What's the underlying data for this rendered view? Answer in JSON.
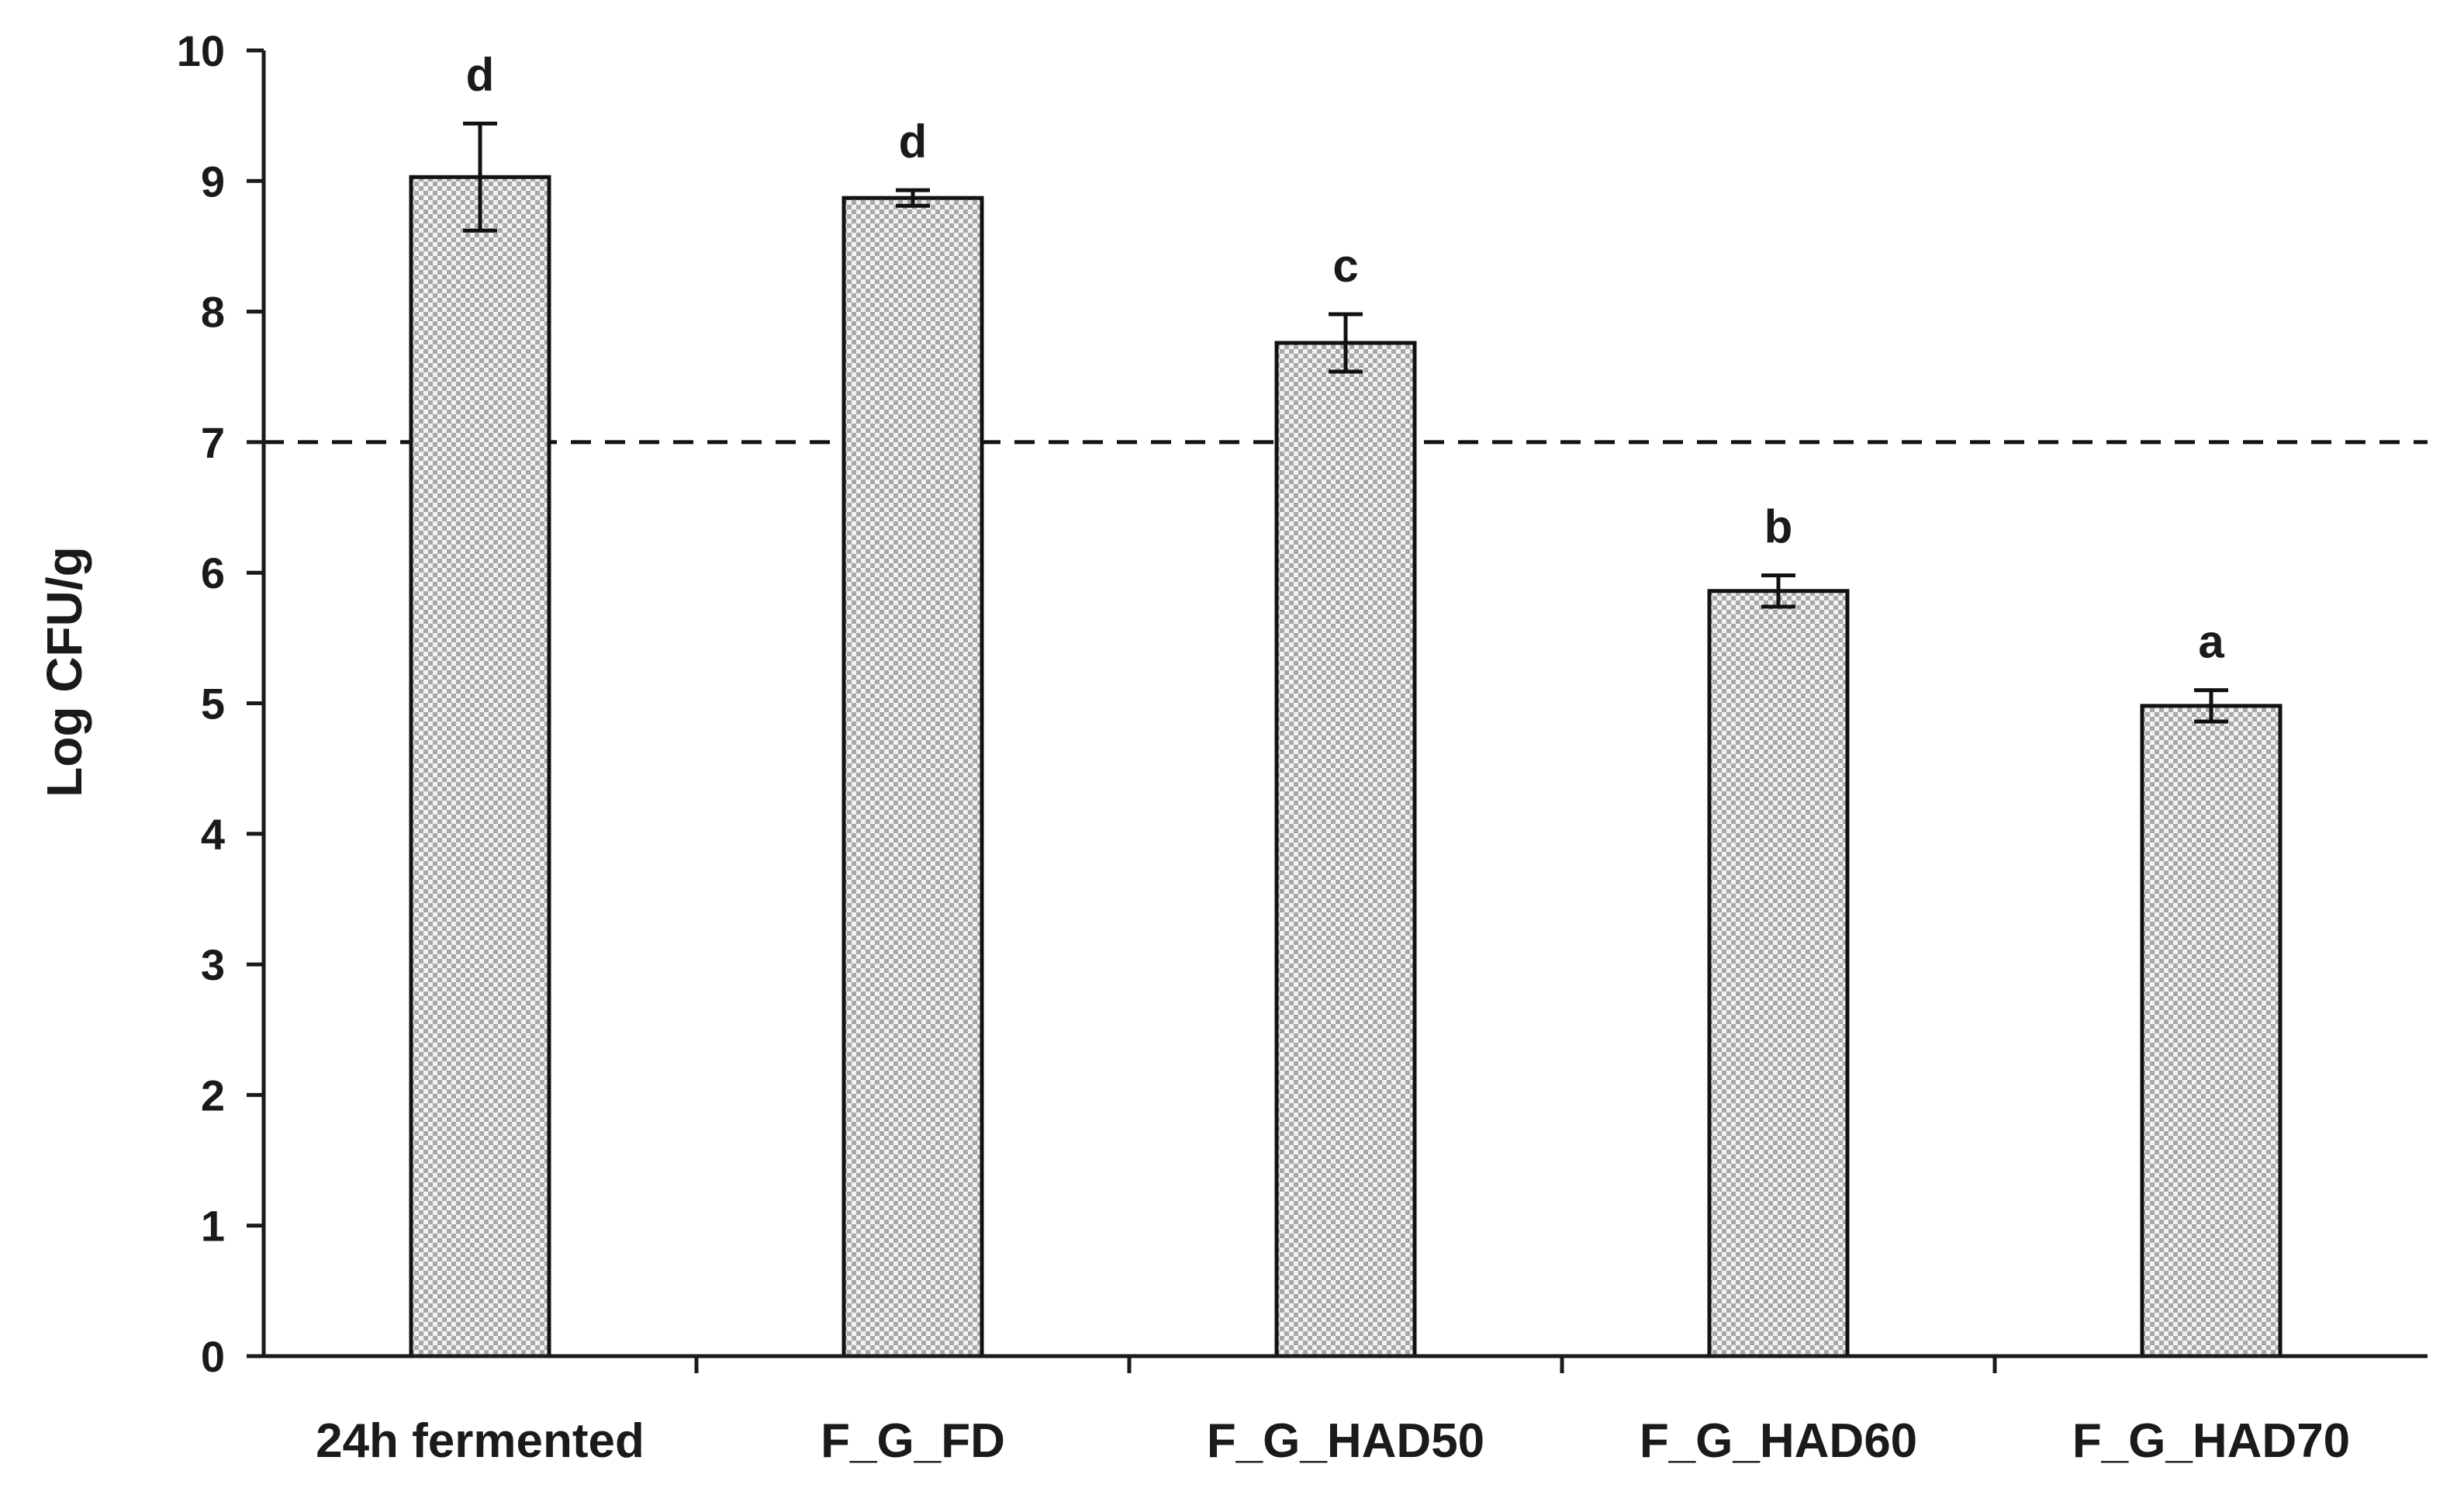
{
  "chart_data": {
    "type": "bar",
    "title": "",
    "xlabel": "",
    "ylabel": "Log CFU/g",
    "ylim": [
      0,
      10
    ],
    "yticks": [
      0,
      1,
      2,
      3,
      4,
      5,
      6,
      7,
      8,
      9,
      10
    ],
    "categories": [
      "24h fermented",
      "F_G_FD",
      "F_G_HAD50",
      "F_G_HAD60",
      "F_G_HAD70"
    ],
    "values": [
      9.03,
      8.87,
      7.76,
      5.86,
      4.98
    ],
    "errors": [
      0.41,
      0.06,
      0.22,
      0.12,
      0.12
    ],
    "significance_letters": [
      "d",
      "d",
      "c",
      "b",
      "a"
    ],
    "reference_line": {
      "y": 7,
      "style": "dashed"
    },
    "bar_fill": "checkered-gray",
    "colors": {
      "bar_stroke": "#111111",
      "pattern_dark": "#a8a8a8",
      "pattern_light": "#f2f2f2",
      "axis": "#1a1a1a"
    },
    "grid": false,
    "legend": "none"
  }
}
